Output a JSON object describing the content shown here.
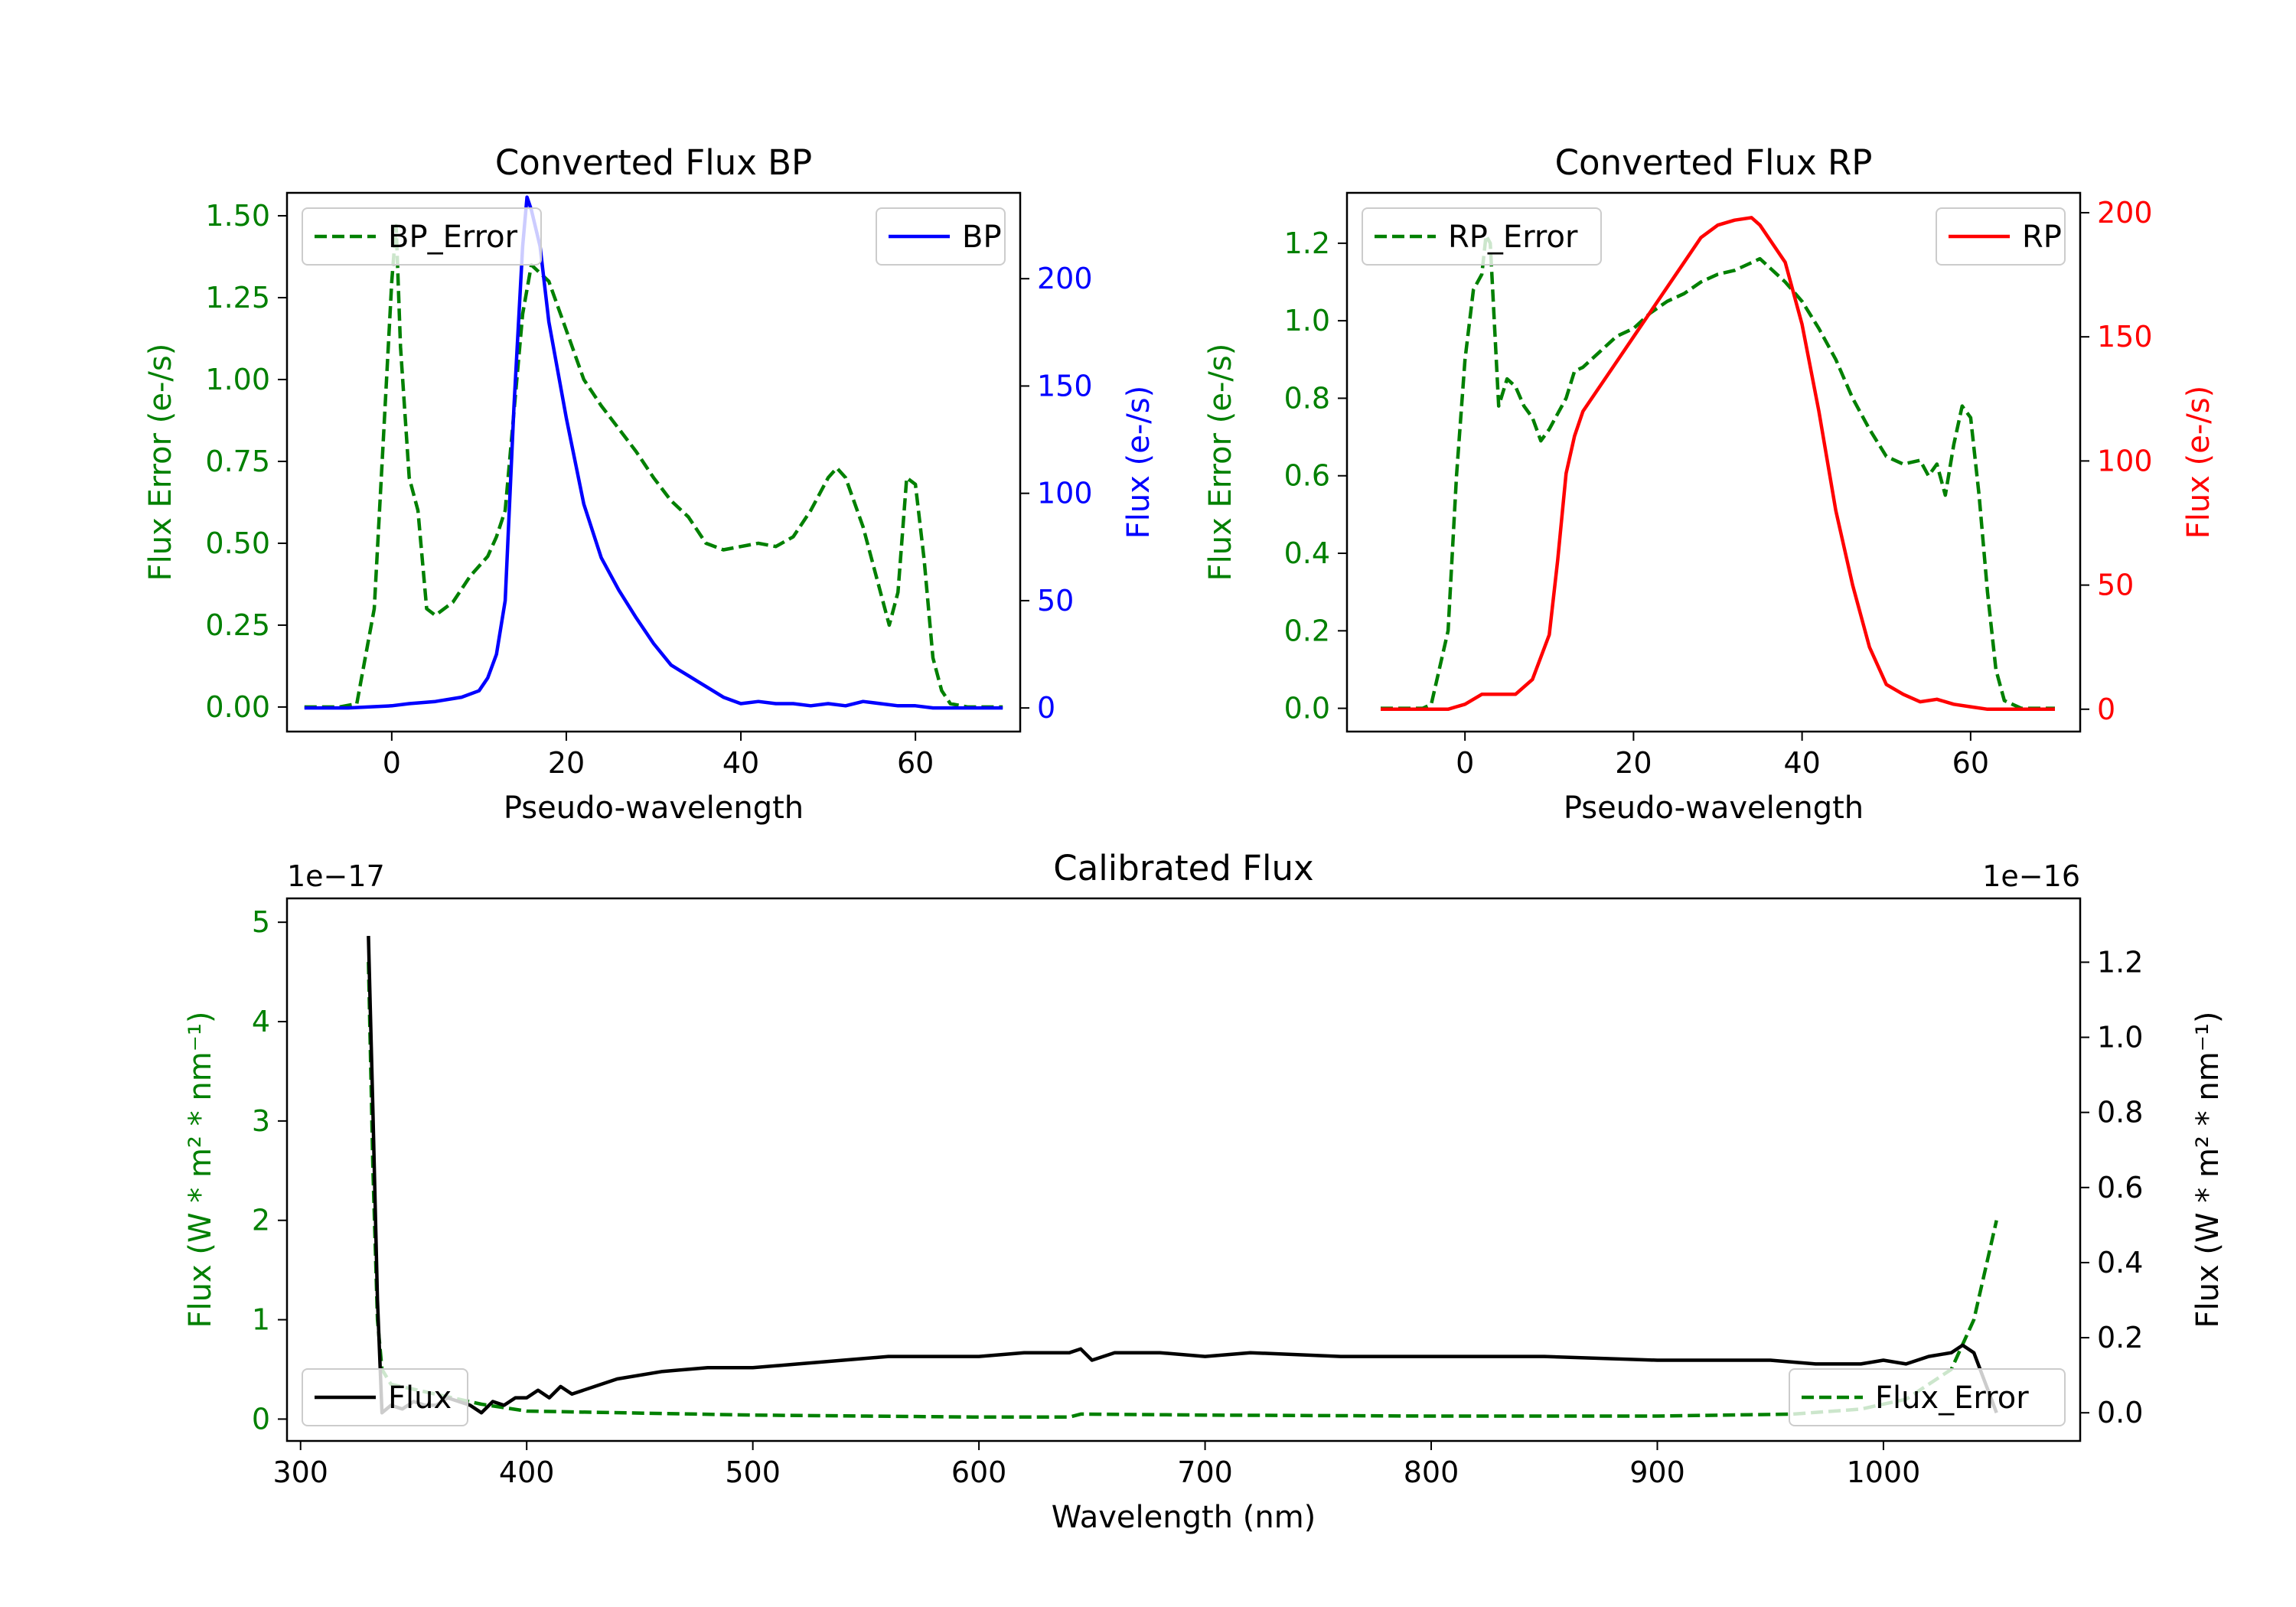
{
  "chart_data": [
    {
      "type": "line",
      "title": "Converted Flux BP",
      "xlabel": "Pseudo-wavelength",
      "ylabel_left": "Flux Error (e-/s)",
      "ylabel_right": "Flux (e-/s)",
      "xlim": [
        -12,
        72
      ],
      "ylim_left": [
        -0.075,
        1.57
      ],
      "ylim_right": [
        -11,
        240
      ],
      "xticks": [
        "0",
        "20",
        "40",
        "60"
      ],
      "yticks_left": [
        "0.00",
        "0.25",
        "0.50",
        "0.75",
        "1.00",
        "1.25",
        "1.50"
      ],
      "yticks_right": [
        "0",
        "50",
        "100",
        "150",
        "200"
      ],
      "series": [
        {
          "name": "BP_Error",
          "axis": "left",
          "color": "#008000",
          "style": "dashed",
          "x": [
            -10,
            -6,
            -4,
            -2,
            -1,
            0,
            0.5,
            1,
            2,
            3,
            4,
            5,
            7,
            9,
            11,
            12,
            13,
            14,
            15,
            16,
            18,
            20,
            22,
            24,
            26,
            28,
            30,
            32,
            34,
            36,
            38,
            40,
            42,
            44,
            46,
            48,
            50,
            51,
            52,
            54,
            56,
            57,
            58,
            59,
            60,
            61,
            62,
            63,
            64,
            66,
            70
          ],
          "values": [
            0,
            0,
            0.01,
            0.3,
            0.8,
            1.3,
            1.47,
            1.1,
            0.7,
            0.6,
            0.3,
            0.28,
            0.32,
            0.4,
            0.46,
            0.52,
            0.6,
            0.9,
            1.2,
            1.35,
            1.3,
            1.15,
            1.0,
            0.92,
            0.85,
            0.78,
            0.7,
            0.63,
            0.58,
            0.5,
            0.48,
            0.49,
            0.5,
            0.49,
            0.52,
            0.6,
            0.7,
            0.73,
            0.7,
            0.55,
            0.35,
            0.25,
            0.35,
            0.7,
            0.68,
            0.45,
            0.15,
            0.05,
            0.01,
            0,
            0
          ]
        },
        {
          "name": "BP",
          "axis": "right",
          "color": "#0000ff",
          "style": "solid",
          "x": [
            -10,
            -5,
            0,
            2,
            5,
            8,
            10,
            11,
            12,
            13,
            14,
            15,
            15.5,
            16,
            17,
            18,
            20,
            22,
            24,
            26,
            28,
            30,
            32,
            34,
            36,
            38,
            40,
            42,
            44,
            46,
            48,
            50,
            52,
            54,
            56,
            58,
            60,
            62,
            65,
            70
          ],
          "values": [
            0,
            0,
            1,
            2,
            3,
            5,
            8,
            14,
            25,
            50,
            140,
            215,
            238,
            232,
            215,
            180,
            135,
            95,
            70,
            55,
            42,
            30,
            20,
            15,
            10,
            5,
            2,
            3,
            2,
            2,
            1,
            2,
            1,
            3,
            2,
            1,
            1,
            0,
            0,
            0
          ]
        }
      ],
      "legend": [
        {
          "label": "BP_Error",
          "placement": "upper-left"
        },
        {
          "label": "BP",
          "placement": "upper-right"
        }
      ]
    },
    {
      "type": "line",
      "title": "Converted Flux RP",
      "xlabel": "Pseudo-wavelength",
      "ylabel_left": "Flux Error (e-/s)",
      "ylabel_right": "Flux (e-/s)",
      "xlim": [
        -14,
        73
      ],
      "ylim_left": [
        -0.06,
        1.33
      ],
      "ylim_right": [
        -9,
        208
      ],
      "xticks": [
        "0",
        "20",
        "40",
        "60"
      ],
      "yticks_left": [
        "0.0",
        "0.2",
        "0.4",
        "0.6",
        "0.8",
        "1.0",
        "1.2"
      ],
      "yticks_right": [
        "0",
        "50",
        "100",
        "150",
        "200"
      ],
      "series": [
        {
          "name": "RP_Error",
          "axis": "left",
          "color": "#008000",
          "style": "dashed",
          "x": [
            -10,
            -5,
            -4,
            -2,
            -1,
            0,
            1,
            2,
            2.5,
            3,
            4,
            5,
            6,
            7,
            8,
            9,
            10,
            12,
            13,
            14,
            16,
            18,
            20,
            22,
            24,
            26,
            28,
            30,
            32,
            34,
            35,
            36,
            38,
            40,
            42,
            44,
            46,
            48,
            50,
            52,
            54,
            55,
            56,
            57,
            58,
            59,
            60,
            61,
            62,
            63,
            64,
            66,
            70
          ],
          "values": [
            0,
            0,
            0.01,
            0.2,
            0.6,
            0.9,
            1.08,
            1.12,
            1.22,
            1.2,
            0.78,
            0.85,
            0.83,
            0.78,
            0.75,
            0.69,
            0.72,
            0.8,
            0.87,
            0.88,
            0.92,
            0.96,
            0.98,
            1.02,
            1.05,
            1.07,
            1.1,
            1.12,
            1.13,
            1.15,
            1.16,
            1.14,
            1.1,
            1.05,
            0.98,
            0.9,
            0.8,
            0.72,
            0.65,
            0.63,
            0.64,
            0.6,
            0.63,
            0.55,
            0.68,
            0.78,
            0.75,
            0.55,
            0.3,
            0.1,
            0.02,
            0,
            0
          ]
        },
        {
          "name": "RP",
          "axis": "right",
          "color": "#ff0000",
          "style": "solid",
          "x": [
            -10,
            -2,
            0,
            2,
            4,
            6,
            8,
            10,
            11,
            12,
            13,
            14,
            16,
            18,
            20,
            22,
            24,
            26,
            28,
            30,
            32,
            34,
            35,
            36,
            38,
            40,
            42,
            44,
            46,
            48,
            50,
            52,
            54,
            56,
            58,
            60,
            62,
            65,
            70
          ],
          "values": [
            0,
            0,
            2,
            6,
            6,
            6,
            12,
            30,
            60,
            95,
            110,
            120,
            130,
            140,
            150,
            160,
            170,
            180,
            190,
            195,
            197,
            198,
            195,
            190,
            180,
            155,
            120,
            80,
            50,
            25,
            10,
            6,
            3,
            4,
            2,
            1,
            0,
            0,
            0
          ]
        }
      ],
      "legend": [
        {
          "label": "RP_Error",
          "placement": "upper-left"
        },
        {
          "label": "RP",
          "placement": "upper-right"
        }
      ]
    },
    {
      "type": "line",
      "title": "Calibrated Flux",
      "xlabel": "Wavelength (nm)",
      "ylabel_left": "Flux (W * m² * nm⁻¹)",
      "ylabel_right": "Flux (W * m² * nm⁻¹)",
      "offset_left": "1e−17",
      "offset_right": "1e−16",
      "xlim": [
        294,
        1087
      ],
      "ylim_left": [
        -0.22,
        5.24
      ],
      "ylim_right": [
        -0.075,
        1.37
      ],
      "xticks": [
        "300",
        "400",
        "500",
        "600",
        "700",
        "800",
        "900",
        "1000"
      ],
      "yticks_left": [
        "0",
        "1",
        "2",
        "3",
        "4",
        "5"
      ],
      "yticks_right": [
        "0.0",
        "0.2",
        "0.4",
        "0.6",
        "0.8",
        "1.0",
        "1.2"
      ],
      "series": [
        {
          "name": "Flux_Error",
          "axis": "left",
          "color": "#008000",
          "style": "dashed",
          "x": [
            330,
            332,
            334,
            336,
            340,
            350,
            360,
            380,
            400,
            450,
            500,
            550,
            600,
            640,
            645,
            700,
            800,
            900,
            960,
            990,
            1010,
            1030,
            1040,
            1045,
            1050
          ],
          "values": [
            4.6,
            2.5,
            1.0,
            0.5,
            0.35,
            0.3,
            0.25,
            0.15,
            0.08,
            0.06,
            0.04,
            0.03,
            0.02,
            0.02,
            0.05,
            0.04,
            0.03,
            0.03,
            0.05,
            0.1,
            0.2,
            0.5,
            1.0,
            1.5,
            2.0
          ]
        },
        {
          "name": "Flux",
          "axis": "right",
          "color": "#000000",
          "style": "solid",
          "x": [
            330,
            332,
            334,
            336,
            340,
            345,
            350,
            355,
            360,
            365,
            370,
            375,
            380,
            385,
            390,
            395,
            400,
            405,
            410,
            415,
            420,
            430,
            440,
            460,
            480,
            500,
            520,
            540,
            560,
            580,
            600,
            620,
            640,
            645,
            650,
            660,
            680,
            700,
            720,
            760,
            800,
            850,
            900,
            950,
            970,
            990,
            1000,
            1010,
            1020,
            1030,
            1035,
            1040,
            1045,
            1050
          ],
          "values": [
            1.27,
            0.8,
            0.3,
            0.0,
            0.02,
            0.01,
            0.03,
            0.02,
            0.02,
            0.04,
            0.03,
            0.02,
            0.0,
            0.03,
            0.02,
            0.04,
            0.04,
            0.06,
            0.04,
            0.07,
            0.05,
            0.07,
            0.09,
            0.11,
            0.12,
            0.12,
            0.13,
            0.14,
            0.15,
            0.15,
            0.15,
            0.16,
            0.16,
            0.17,
            0.14,
            0.16,
            0.16,
            0.15,
            0.16,
            0.15,
            0.15,
            0.15,
            0.14,
            0.14,
            0.13,
            0.13,
            0.14,
            0.13,
            0.15,
            0.16,
            0.18,
            0.16,
            0.08,
            0.0
          ]
        }
      ],
      "legend": [
        {
          "label": "Flux",
          "placement": "lower-left"
        },
        {
          "label": "Flux_Error",
          "placement": "lower-right"
        }
      ]
    }
  ]
}
